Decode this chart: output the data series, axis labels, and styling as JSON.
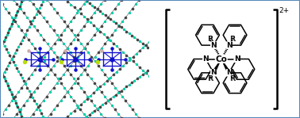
{
  "bg_color": "#ffffff",
  "border_color": "#5588bb",
  "border_linewidth": 1.5,
  "fig_width": 3.78,
  "fig_height": 1.49,
  "charge_label": "2+",
  "center_label": "Co",
  "N_label": "N",
  "R_label": "R",
  "teal_color": "#00ccaa",
  "dark_color": "#444444",
  "blue_color": "#1111cc"
}
